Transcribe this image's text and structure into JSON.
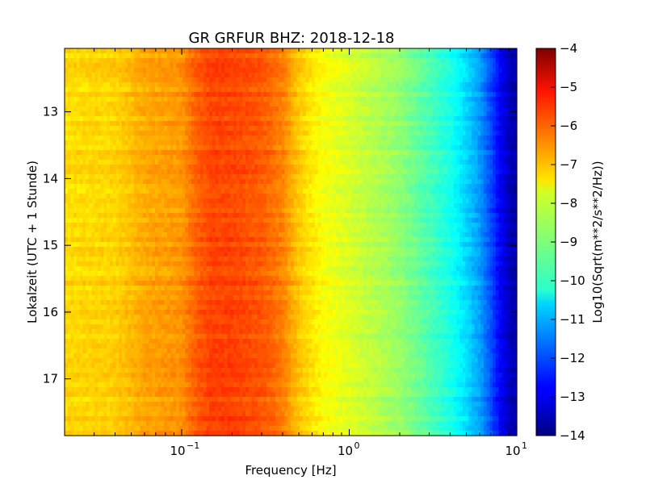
{
  "chart_data": {
    "type": "heatmap",
    "title": "GR GRFUR BHZ: 2018-12-18",
    "xlabel": "Frequency [Hz]",
    "ylabel": "Lokalzeit (UTC + 1 Stunde)",
    "x_scale": "log",
    "xlim": [
      0.02,
      10
    ],
    "ylim": [
      17.85,
      12.05
    ],
    "x_ticks": [
      {
        "value": 0.1,
        "base": "10",
        "exp": "−1"
      },
      {
        "value": 1,
        "base": "10",
        "exp": "0"
      },
      {
        "value": 10,
        "base": "10",
        "exp": "1"
      }
    ],
    "y_ticks": [
      13,
      14,
      15,
      16,
      17
    ],
    "y_tick_labels": [
      "13",
      "14",
      "15",
      "16",
      "17"
    ],
    "colorbar": {
      "label": "Log10(Sqrt(m**2/s**2/Hz))",
      "range": [
        -14,
        -4
      ],
      "ticks": [
        -4,
        -5,
        -6,
        -7,
        -8,
        -9,
        -10,
        -11,
        -12,
        -13,
        -14
      ],
      "tick_labels": [
        "−4",
        "−5",
        "−6",
        "−7",
        "−8",
        "−9",
        "−10",
        "−11",
        "−12",
        "−13",
        "−14"
      ],
      "colormap": "jet"
    },
    "spectrum_profile": {
      "frequencies": [
        0.02,
        0.04,
        0.06,
        0.1,
        0.12,
        0.15,
        0.2,
        0.3,
        0.4,
        0.5,
        0.7,
        1.0,
        1.5,
        2.0,
        3.0,
        4.0,
        5.0,
        6.0,
        7.0,
        8.0,
        9.0,
        10.0
      ],
      "values": [
        -7.4,
        -7.3,
        -6.9,
        -6.7,
        -6.2,
        -5.9,
        -5.9,
        -6.1,
        -6.5,
        -7.2,
        -7.8,
        -8.1,
        -8.5,
        -8.8,
        -9.5,
        -10.0,
        -10.6,
        -11.2,
        -12.0,
        -12.8,
        -13.4,
        -13.6
      ]
    }
  }
}
